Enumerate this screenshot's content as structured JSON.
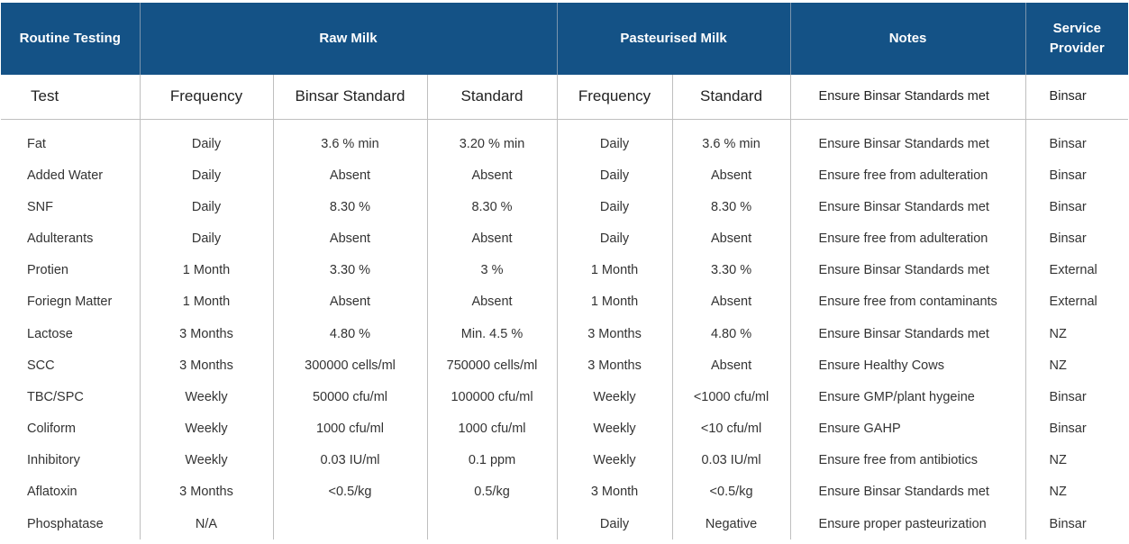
{
  "header": {
    "routine_testing": "Routine Testing",
    "raw_milk": "Raw Milk",
    "pasteurised_milk": "Pasteurised Milk",
    "notes": "Notes",
    "service_provider": "Service Provider"
  },
  "subheader": {
    "test": "Test",
    "raw_frequency": "Frequency",
    "raw_binsar_standard": "Binsar Standard",
    "raw_standard": "Standard",
    "past_frequency": "Frequency",
    "past_standard": "Standard",
    "note": "Ensure Binsar Standards met",
    "provider": "Binsar"
  },
  "rows": [
    {
      "test": "Fat",
      "raw_freq": "Daily",
      "raw_binsar": "3.6 % min",
      "raw_std": "3.20 % min",
      "past_freq": "Daily",
      "past_std": "3.6 % min",
      "note": "Ensure Binsar Standards met",
      "provider": "Binsar"
    },
    {
      "test": "Added Water",
      "raw_freq": "Daily",
      "raw_binsar": "Absent",
      "raw_std": "Absent",
      "past_freq": "Daily",
      "past_std": "Absent",
      "note": "Ensure free from adulteration",
      "provider": "Binsar"
    },
    {
      "test": "SNF",
      "raw_freq": "Daily",
      "raw_binsar": "8.30 %",
      "raw_std": "8.30 %",
      "past_freq": "Daily",
      "past_std": "8.30 %",
      "note": "Ensure Binsar Standards met",
      "provider": "Binsar"
    },
    {
      "test": "Adulterants",
      "raw_freq": "Daily",
      "raw_binsar": "Absent",
      "raw_std": "Absent",
      "past_freq": "Daily",
      "past_std": "Absent",
      "note": "Ensure free from adulteration",
      "provider": "Binsar"
    },
    {
      "test": "Protien",
      "raw_freq": "1 Month",
      "raw_binsar": "3.30 %",
      "raw_std": "3 %",
      "past_freq": "1 Month",
      "past_std": "3.30 %",
      "note": "Ensure Binsar Standards met",
      "provider": "External"
    },
    {
      "test": "Foriegn Matter",
      "raw_freq": "1 Month",
      "raw_binsar": "Absent",
      "raw_std": "Absent",
      "past_freq": "1 Month",
      "past_std": "Absent",
      "note": "Ensure free from contaminants",
      "provider": "External"
    },
    {
      "test": "Lactose",
      "raw_freq": "3 Months",
      "raw_binsar": "4.80 %",
      "raw_std": "Min. 4.5 %",
      "past_freq": "3 Months",
      "past_std": "4.80 %",
      "note": "Ensure Binsar Standards met",
      "provider": "NZ"
    },
    {
      "test": "SCC",
      "raw_freq": "3 Months",
      "raw_binsar": "300000 cells/ml",
      "raw_std": "750000 cells/ml",
      "past_freq": "3 Months",
      "past_std": "Absent",
      "note": "Ensure Healthy Cows",
      "provider": "NZ"
    },
    {
      "test": "TBC/SPC",
      "raw_freq": "Weekly",
      "raw_binsar": "50000 cfu/ml",
      "raw_std": "100000 cfu/ml",
      "past_freq": "Weekly",
      "past_std": "<1000 cfu/ml",
      "note": "Ensure GMP/plant hygeine",
      "provider": "Binsar"
    },
    {
      "test": "Coliform",
      "raw_freq": "Weekly",
      "raw_binsar": "1000 cfu/ml",
      "raw_std": "1000 cfu/ml",
      "past_freq": "Weekly",
      "past_std": "<10 cfu/ml",
      "note": "Ensure GAHP",
      "provider": "Binsar"
    },
    {
      "test": "Inhibitory",
      "raw_freq": "Weekly",
      "raw_binsar": "0.03 IU/ml",
      "raw_std": "0.1 ppm",
      "past_freq": "Weekly",
      "past_std": "0.03 IU/ml",
      "note": "Ensure free from antibiotics",
      "provider": "NZ"
    },
    {
      "test": "Aflatoxin",
      "raw_freq": "3 Months",
      "raw_binsar": "<0.5/kg",
      "raw_std": "0.5/kg",
      "past_freq": "3 Month",
      "past_std": "<0.5/kg",
      "note": "Ensure Binsar Standards met",
      "provider": "NZ"
    },
    {
      "test": "Phosphatase",
      "raw_freq": "N/A",
      "raw_binsar": "",
      "raw_std": "",
      "past_freq": "Daily",
      "past_std": "Negative",
      "note": "Ensure proper pasteurization",
      "provider": "Binsar"
    }
  ]
}
